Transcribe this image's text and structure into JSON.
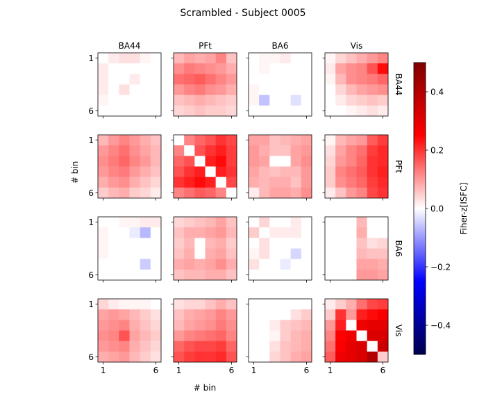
{
  "figure": {
    "title": "Scrambled - Subject 0005",
    "xlabel": "# bin",
    "ylabel": "# bin",
    "colorbar_label": "Fiher-z[ISFC]",
    "colorbar_ticks": [
      "0.4",
      "0.2",
      "0.0",
      "−0.2",
      "−0.4"
    ]
  },
  "chart_data": {
    "type": "heatmap",
    "layout": "4x4 grid of 6x6 heatmaps",
    "title": "Scrambled - Subject 0005",
    "xlabel": "# bin",
    "ylabel": "# bin",
    "column_labels": [
      "BA44",
      "PFt",
      "BA6",
      "Vis"
    ],
    "row_labels": [
      "BA44",
      "PFt",
      "BA6",
      "Vis"
    ],
    "bin_tick_labels": [
      "1",
      "6"
    ],
    "colormap": "seismic",
    "vmin": -0.5,
    "vmax": 0.5,
    "colorbar_label": "Fiher-z[ISFC]",
    "colorbar_ticks": [
      0.4,
      0.2,
      0.0,
      -0.2,
      -0.4
    ],
    "panels": [
      [
        [
          [
            0.0,
            0.02,
            0.03,
            0.03,
            0.01,
            0.0
          ],
          [
            0.02,
            0.0,
            0.0,
            0.0,
            0.0,
            0.0
          ],
          [
            0.02,
            0.0,
            0.0,
            0.02,
            0.0,
            0.0
          ],
          [
            0.02,
            0.0,
            0.03,
            0.0,
            0.0,
            0.0
          ],
          [
            0.01,
            0.0,
            0.0,
            0.0,
            0.0,
            0.0
          ],
          [
            0.0,
            0.0,
            0.0,
            0.0,
            0.0,
            0.0
          ]
        ],
        [
          [
            0.07,
            0.09,
            0.08,
            0.09,
            0.12,
            0.06
          ],
          [
            0.11,
            0.13,
            0.12,
            0.11,
            0.1,
            0.08
          ],
          [
            0.14,
            0.15,
            0.16,
            0.14,
            0.12,
            0.1
          ],
          [
            0.1,
            0.12,
            0.13,
            0.11,
            0.1,
            0.08
          ],
          [
            0.06,
            0.07,
            0.08,
            0.07,
            0.06,
            0.05
          ],
          [
            0.04,
            0.05,
            0.06,
            0.05,
            0.05,
            0.04
          ]
        ],
        [
          [
            0.0,
            0.01,
            0.01,
            0.02,
            0.0,
            0.0
          ],
          [
            0.0,
            0.01,
            0.0,
            0.0,
            0.0,
            0.0
          ],
          [
            0.0,
            0.0,
            0.0,
            0.0,
            0.0,
            0.0
          ],
          [
            0.01,
            0.0,
            0.0,
            0.0,
            0.0,
            0.0
          ],
          [
            0.01,
            -0.06,
            0.0,
            0.0,
            -0.03,
            0.0
          ],
          [
            0.0,
            0.0,
            0.0,
            0.0,
            0.0,
            0.0
          ]
        ],
        [
          [
            0.01,
            0.04,
            0.06,
            0.08,
            0.1,
            0.12
          ],
          [
            0.02,
            0.09,
            0.11,
            0.12,
            0.17,
            0.24
          ],
          [
            0.01,
            0.07,
            0.11,
            0.12,
            0.13,
            0.15
          ],
          [
            0.0,
            0.04,
            0.07,
            0.09,
            0.1,
            0.11
          ],
          [
            0.0,
            0.02,
            0.04,
            0.05,
            0.06,
            0.05
          ],
          [
            0.0,
            0.0,
            0.01,
            0.02,
            0.03,
            0.02
          ]
        ]
      ],
      [
        [
          [
            0.07,
            0.1,
            0.12,
            0.1,
            0.08,
            0.06
          ],
          [
            0.1,
            0.12,
            0.14,
            0.11,
            0.09,
            0.07
          ],
          [
            0.11,
            0.13,
            0.15,
            0.12,
            0.1,
            0.07
          ],
          [
            0.1,
            0.12,
            0.13,
            0.1,
            0.08,
            0.06
          ],
          [
            0.08,
            0.1,
            0.11,
            0.08,
            0.06,
            0.04
          ],
          [
            0.05,
            0.07,
            0.08,
            0.05,
            0.04,
            0.02
          ]
        ],
        [
          [
            0.0,
            0.12,
            0.15,
            0.17,
            0.2,
            0.18
          ],
          [
            0.12,
            0.0,
            0.17,
            0.2,
            0.22,
            0.19
          ],
          [
            0.15,
            0.17,
            0.0,
            0.22,
            0.24,
            0.19
          ],
          [
            0.17,
            0.2,
            0.22,
            0.0,
            0.22,
            0.2
          ],
          [
            0.2,
            0.22,
            0.24,
            0.22,
            0.0,
            0.18
          ],
          [
            0.12,
            0.14,
            0.16,
            0.15,
            0.12,
            0.0
          ]
        ],
        [
          [
            0.09,
            0.09,
            0.06,
            0.07,
            0.08,
            0.09
          ],
          [
            0.1,
            0.08,
            0.06,
            0.06,
            0.09,
            0.1
          ],
          [
            0.1,
            0.09,
            0.0,
            0.0,
            0.09,
            0.11
          ],
          [
            0.09,
            0.07,
            0.06,
            0.07,
            0.07,
            0.1
          ],
          [
            0.08,
            0.07,
            0.08,
            0.08,
            0.06,
            0.1
          ],
          [
            0.02,
            0.07,
            0.09,
            0.09,
            0.08,
            0.11
          ]
        ],
        [
          [
            0.01,
            0.07,
            0.09,
            0.1,
            0.16,
            0.19
          ],
          [
            0.03,
            0.09,
            0.12,
            0.14,
            0.19,
            0.21
          ],
          [
            0.04,
            0.1,
            0.12,
            0.15,
            0.2,
            0.21
          ],
          [
            0.05,
            0.12,
            0.14,
            0.16,
            0.2,
            0.22
          ],
          [
            0.05,
            0.11,
            0.13,
            0.15,
            0.19,
            0.21
          ],
          [
            0.02,
            0.06,
            0.1,
            0.12,
            0.18,
            0.2
          ]
        ]
      ],
      [
        [
          [
            0.0,
            0.0,
            0.01,
            0.01,
            0.02,
            0.02
          ],
          [
            0.01,
            0.0,
            0.0,
            -0.02,
            -0.07,
            0.0
          ],
          [
            0.01,
            0.0,
            0.0,
            0.0,
            0.0,
            0.0
          ],
          [
            0.01,
            0.0,
            0.0,
            0.0,
            0.0,
            0.0
          ],
          [
            0.0,
            0.0,
            0.0,
            0.0,
            -0.05,
            0.0
          ],
          [
            0.0,
            0.0,
            0.0,
            0.0,
            0.0,
            0.0
          ]
        ],
        [
          [
            0.04,
            0.05,
            0.06,
            0.07,
            0.09,
            0.06
          ],
          [
            0.06,
            0.08,
            0.08,
            0.09,
            0.1,
            0.07
          ],
          [
            0.05,
            0.07,
            0.0,
            0.07,
            0.08,
            0.05
          ],
          [
            0.06,
            0.08,
            0.0,
            0.08,
            0.09,
            0.06
          ],
          [
            0.08,
            0.09,
            0.08,
            0.09,
            0.11,
            0.08
          ],
          [
            0.06,
            0.07,
            0.07,
            0.08,
            0.08,
            0.06
          ]
        ],
        [
          [
            0.0,
            0.04,
            0.0,
            0.0,
            0.02,
            0.0
          ],
          [
            0.05,
            0.0,
            0.02,
            0.02,
            0.02,
            0.0
          ],
          [
            0.0,
            0.03,
            0.0,
            0.0,
            0.0,
            0.0
          ],
          [
            0.01,
            0.03,
            0.0,
            0.0,
            -0.04,
            0.0
          ],
          [
            0.03,
            0.0,
            0.0,
            -0.02,
            0.0,
            0.0
          ],
          [
            0.0,
            0.0,
            0.0,
            0.0,
            0.0,
            0.0
          ]
        ],
        [
          [
            0.0,
            0.0,
            0.0,
            0.07,
            0.0,
            0.0
          ],
          [
            0.0,
            0.0,
            0.0,
            0.08,
            0.0,
            0.0
          ],
          [
            0.0,
            0.0,
            0.0,
            0.06,
            0.03,
            0.04
          ],
          [
            0.0,
            0.0,
            0.0,
            0.07,
            0.06,
            0.06
          ],
          [
            0.0,
            0.0,
            0.0,
            0.09,
            0.09,
            0.08
          ],
          [
            0.0,
            0.0,
            0.0,
            0.1,
            0.1,
            0.09
          ]
        ]
      ],
      [
        [
          [
            0.04,
            0.02,
            0.01,
            0.01,
            0.01,
            0.0
          ],
          [
            0.09,
            0.1,
            0.09,
            0.07,
            0.05,
            0.03
          ],
          [
            0.1,
            0.11,
            0.12,
            0.08,
            0.06,
            0.04
          ],
          [
            0.11,
            0.12,
            0.17,
            0.09,
            0.07,
            0.05
          ],
          [
            0.1,
            0.11,
            0.12,
            0.08,
            0.06,
            0.04
          ],
          [
            0.08,
            0.09,
            0.1,
            0.07,
            0.05,
            0.03
          ]
        ],
        [
          [
            0.03,
            0.04,
            0.04,
            0.06,
            0.08,
            0.06
          ],
          [
            0.06,
            0.08,
            0.09,
            0.1,
            0.12,
            0.1
          ],
          [
            0.07,
            0.09,
            0.1,
            0.11,
            0.13,
            0.11
          ],
          [
            0.1,
            0.12,
            0.13,
            0.14,
            0.15,
            0.12
          ],
          [
            0.15,
            0.17,
            0.18,
            0.18,
            0.19,
            0.15
          ],
          [
            0.17,
            0.19,
            0.2,
            0.2,
            0.21,
            0.17
          ]
        ],
        [
          [
            0.0,
            0.0,
            0.0,
            0.0,
            0.0,
            0.0
          ],
          [
            0.0,
            0.0,
            0.0,
            0.0,
            0.03,
            0.05
          ],
          [
            0.0,
            0.0,
            0.02,
            0.05,
            0.06,
            0.07
          ],
          [
            0.0,
            0.0,
            0.01,
            0.05,
            0.07,
            0.08
          ],
          [
            0.0,
            0.0,
            0.03,
            0.06,
            0.07,
            0.08
          ],
          [
            0.0,
            0.0,
            0.04,
            0.06,
            0.08,
            0.09
          ]
        ],
        [
          [
            0.02,
            0.05,
            0.08,
            0.14,
            0.18,
            0.19
          ],
          [
            0.05,
            0.2,
            0.1,
            0.22,
            0.24,
            0.26
          ],
          [
            0.1,
            0.22,
            0.0,
            0.28,
            0.3,
            0.3
          ],
          [
            0.12,
            0.25,
            0.28,
            0.0,
            0.32,
            0.32
          ],
          [
            0.14,
            0.26,
            0.3,
            0.32,
            0.0,
            0.35
          ],
          [
            0.16,
            0.28,
            0.3,
            0.32,
            0.4,
            0.05
          ]
        ]
      ]
    ]
  }
}
